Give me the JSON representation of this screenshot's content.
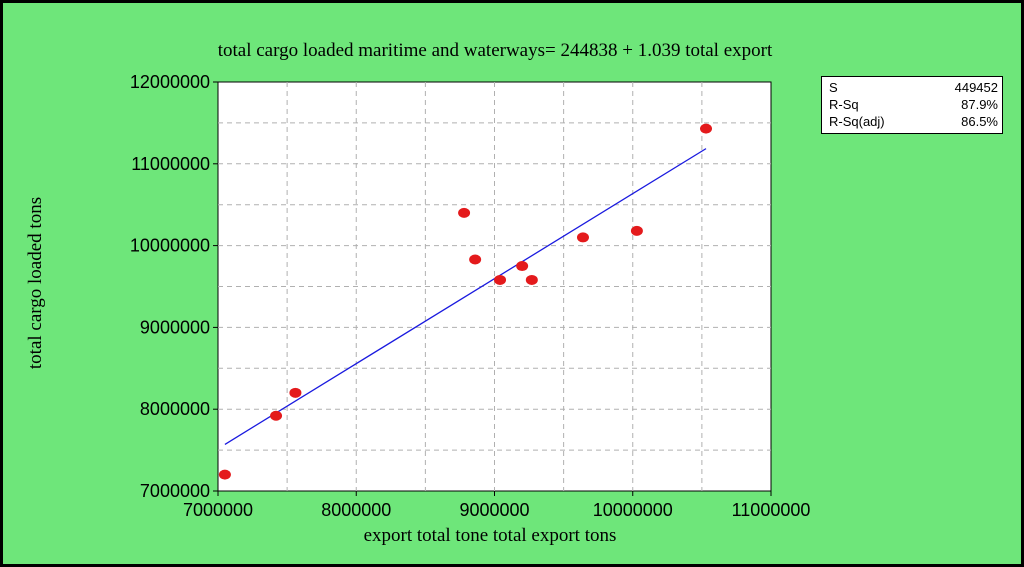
{
  "chart_data": {
    "type": "scatter",
    "title": "total cargo loaded maritime and waterways= 244838 + 1.039 total export",
    "xlabel": "export total tone total export tons",
    "ylabel": "total cargo loaded tons",
    "xlim": [
      7000000,
      11000000
    ],
    "ylim": [
      7000000,
      12000000
    ],
    "xticks": [
      7000000,
      8000000,
      9000000,
      10000000,
      11000000
    ],
    "yticks": [
      7000000,
      8000000,
      9000000,
      10000000,
      11000000,
      12000000
    ],
    "grid": true,
    "points": [
      {
        "x": 7050000,
        "y": 7200000
      },
      {
        "x": 7420000,
        "y": 7920000
      },
      {
        "x": 7560000,
        "y": 8200000
      },
      {
        "x": 8780000,
        "y": 10400000
      },
      {
        "x": 8860000,
        "y": 9830000
      },
      {
        "x": 9040000,
        "y": 9580000
      },
      {
        "x": 9200000,
        "y": 9750000
      },
      {
        "x": 9270000,
        "y": 9580000
      },
      {
        "x": 9640000,
        "y": 10100000
      },
      {
        "x": 10030000,
        "y": 10180000
      },
      {
        "x": 10530000,
        "y": 11430000
      }
    ],
    "fit_line": {
      "intercept": 244838,
      "slope": 1.039,
      "x_range": [
        7050000,
        10530000
      ]
    },
    "point_color": "#e41a1c",
    "line_color": "#1a1adf"
  },
  "stats": [
    {
      "label": "S",
      "value": "449452"
    },
    {
      "label": "R-Sq",
      "value": "87.9%"
    },
    {
      "label": "R-Sq(adj)",
      "value": "86.5%"
    }
  ],
  "colors": {
    "background": "#6ee67a",
    "plot_background": "#ffffff",
    "grid": "#b0b0b0"
  }
}
